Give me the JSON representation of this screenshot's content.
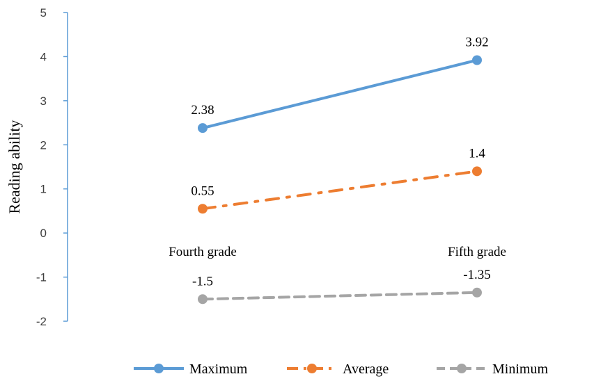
{
  "chart_data": {
    "type": "line",
    "ylabel": "Reading ability",
    "ylim": [
      -2,
      5
    ],
    "yticks": [
      5,
      4,
      3,
      2,
      1,
      0,
      -1,
      -2
    ],
    "categories": [
      "Fourth grade",
      "Fifth grade"
    ],
    "series": [
      {
        "name": "Maximum",
        "values": [
          2.38,
          3.92
        ],
        "labels": [
          "2.38",
          "3.92"
        ],
        "color": "#5B9BD5",
        "dash": "solid"
      },
      {
        "name": "Average",
        "values": [
          0.55,
          1.4
        ],
        "labels": [
          "0.55",
          "1.4"
        ],
        "color": "#ED7D31",
        "dash": "dashdot"
      },
      {
        "name": "Minimum",
        "values": [
          -1.5,
          -1.35
        ],
        "labels": [
          "-1.5",
          "-1.35"
        ],
        "color": "#A5A5A5",
        "dash": "dash"
      }
    ],
    "grid": false,
    "legend": "bottom"
  }
}
